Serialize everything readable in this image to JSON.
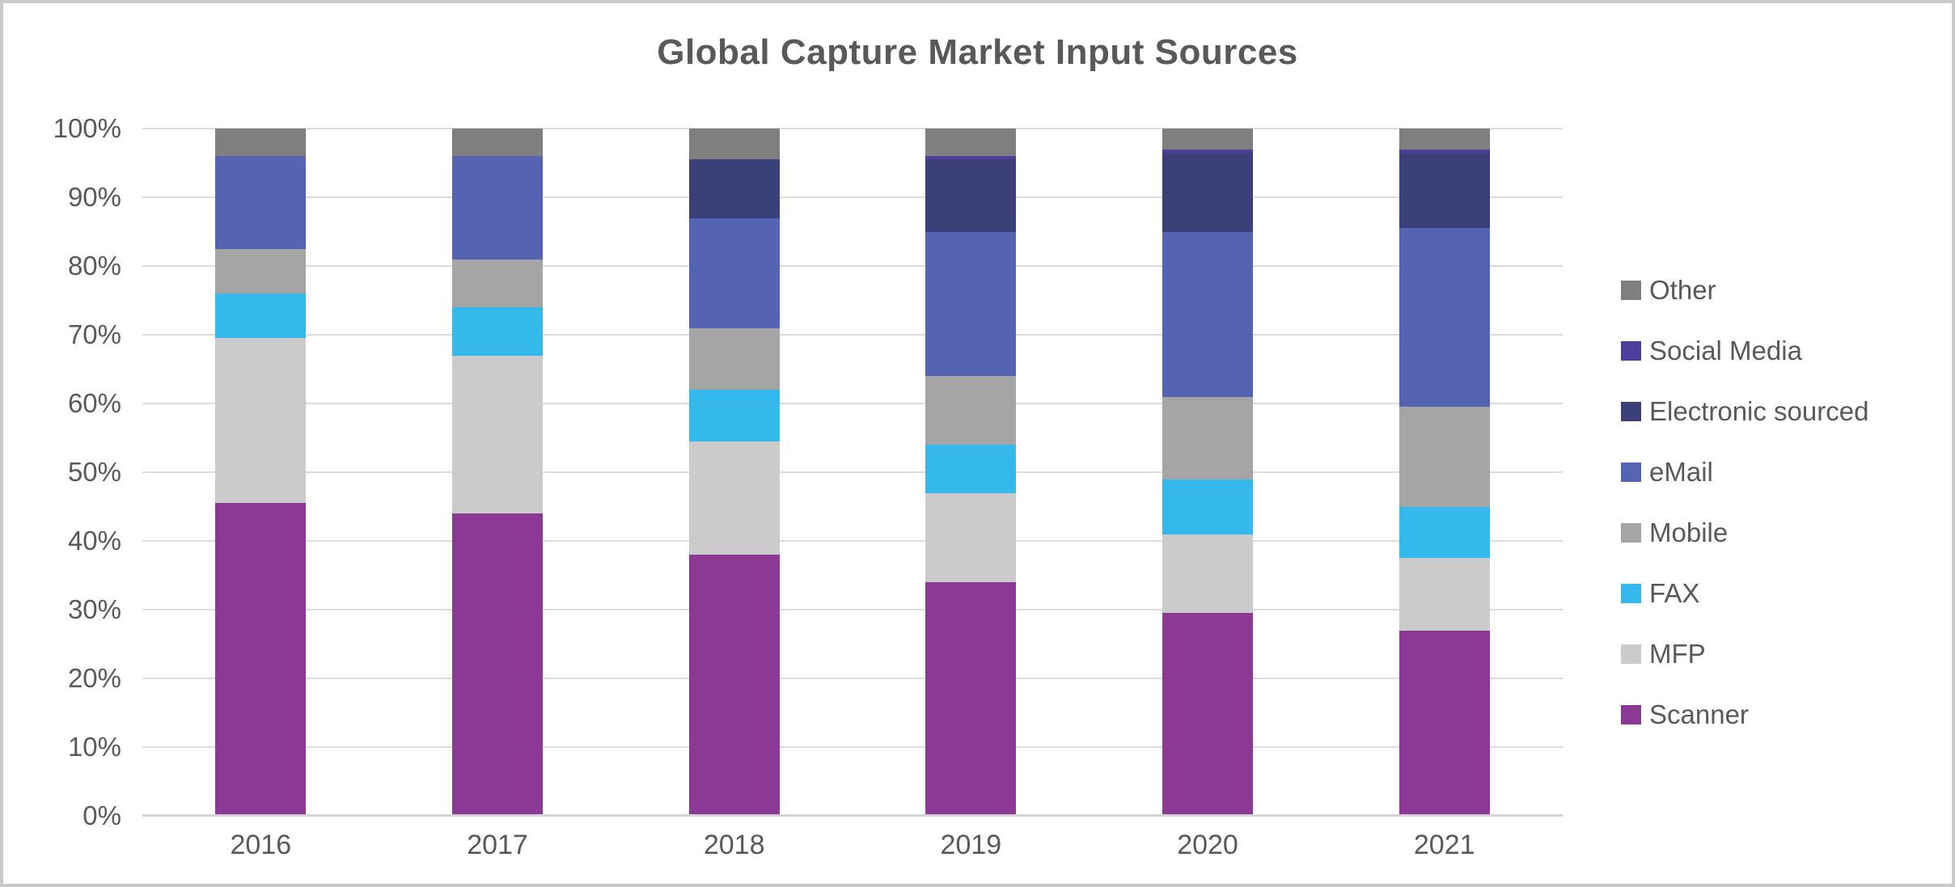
{
  "title": "Global Capture Market Input Sources",
  "colors": {
    "text": "#595959",
    "gridline": "#dcdcdc",
    "axis_line": "#d4d4d4",
    "background": "#ffffff",
    "canvas_border": "#c9c9c9"
  },
  "chart_data": {
    "type": "bar",
    "subtype": "100%-stacked-column",
    "title": "Global Capture Market Input Sources",
    "categories": [
      "2016",
      "2017",
      "2018",
      "2019",
      "2020",
      "2021"
    ],
    "series": [
      {
        "name": "Scanner",
        "color": "#8c3996",
        "values": [
          45.5,
          44.0,
          38.0,
          34.0,
          29.5,
          27.0
        ]
      },
      {
        "name": "MFP",
        "color": "#cccbcb",
        "values": [
          24.0,
          23.0,
          16.5,
          13.0,
          11.5,
          10.5
        ]
      },
      {
        "name": "FAX",
        "color": "#35b8ec",
        "values": [
          6.5,
          7.0,
          7.5,
          7.0,
          8.0,
          7.5
        ]
      },
      {
        "name": "Mobile",
        "color": "#a5a5a5",
        "values": [
          6.5,
          7.0,
          9.0,
          10.0,
          12.0,
          14.5
        ]
      },
      {
        "name": "eMail",
        "color": "#5464b2",
        "values": [
          13.5,
          15.0,
          16.0,
          21.0,
          24.0,
          26.0
        ]
      },
      {
        "name": "Electronic sourced",
        "color": "#3c4079",
        "values": [
          0,
          0,
          8.5,
          10.5,
          11.5,
          11.0
        ]
      },
      {
        "name": "Social Media",
        "color": "#503e9d",
        "values": [
          0,
          0,
          0,
          0.5,
          0.5,
          0.5
        ]
      },
      {
        "name": "Other",
        "color": "#7f7f7f",
        "values": [
          4.0,
          4.0,
          4.5,
          4.0,
          3.0,
          3.0
        ]
      }
    ],
    "stacking_order": "bottom-to-top as listed in series",
    "legend_order_top_to_bottom": [
      "Other",
      "Social Media",
      "Electronic sourced",
      "eMail",
      "Mobile",
      "FAX",
      "MFP",
      "Scanner"
    ],
    "legend_position": "right",
    "grid": true,
    "y_axis": {
      "min": 0,
      "max": 100,
      "tick_step": 10,
      "tick_labels": [
        "0%",
        "10%",
        "20%",
        "30%",
        "40%",
        "50%",
        "60%",
        "70%",
        "80%",
        "90%",
        "100%"
      ]
    }
  }
}
